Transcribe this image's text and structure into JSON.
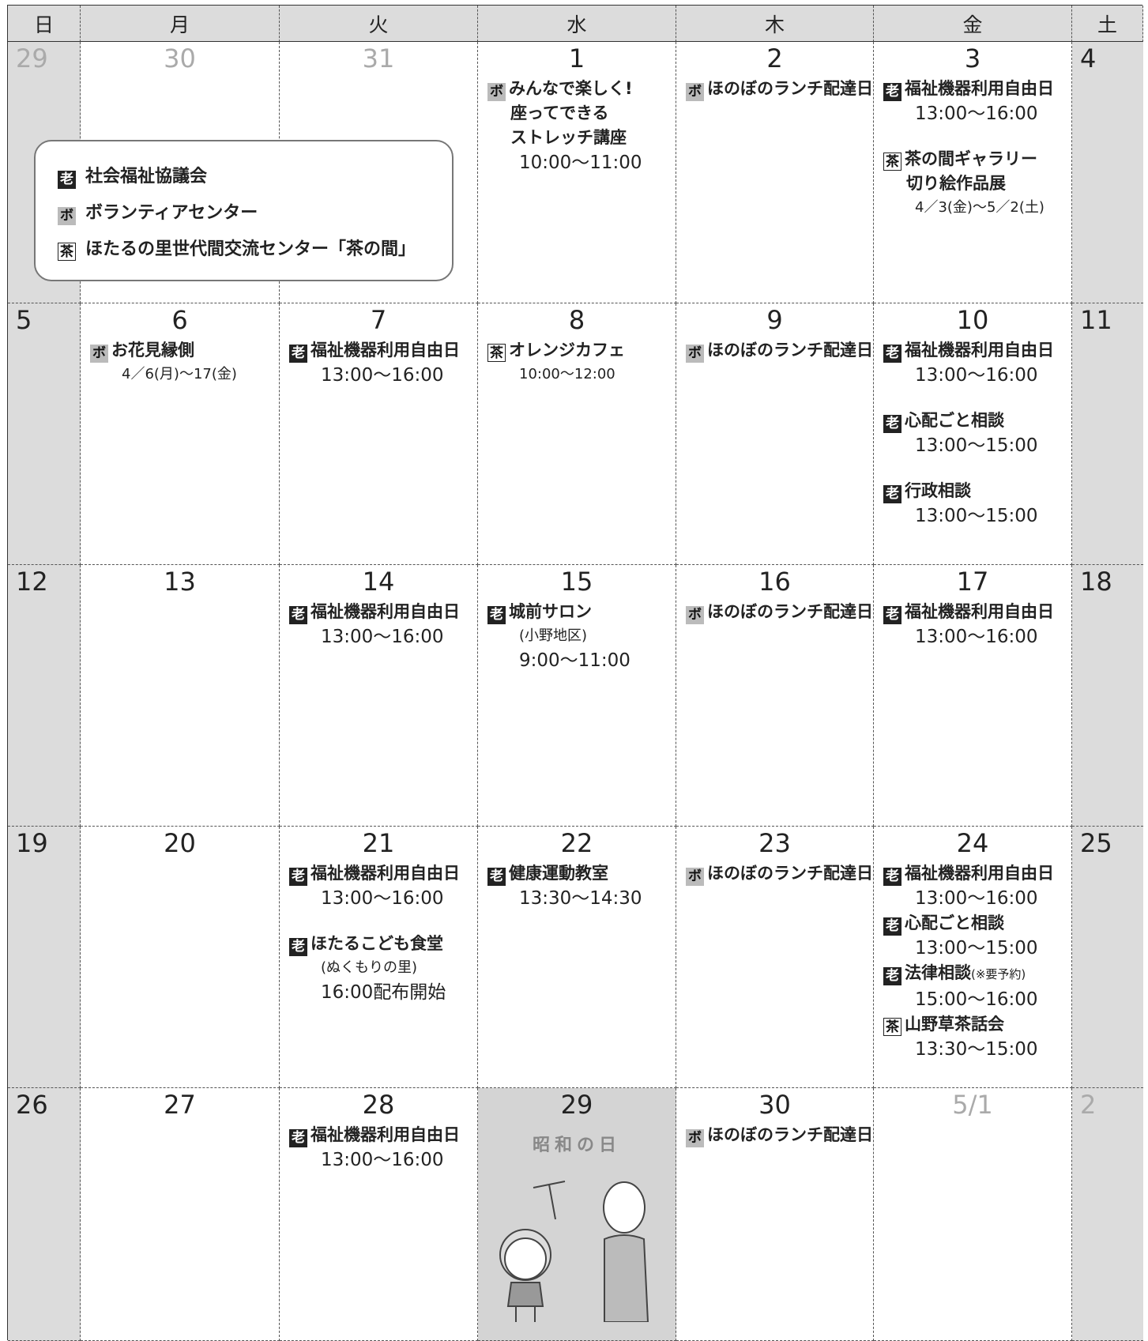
{
  "header": {
    "days": [
      "日",
      "月",
      "火",
      "水",
      "木",
      "金",
      "土"
    ]
  },
  "legend": {
    "items": [
      {
        "tag": "老",
        "label": "社会福祉協議会"
      },
      {
        "tag": "ボ",
        "label": "ボランティアセンター"
      },
      {
        "tag": "茶",
        "label": "ほたるの里世代間交流センター「茶の間」"
      }
    ]
  },
  "weeks": [
    {
      "days": [
        {
          "date": "29",
          "muted": true
        },
        {
          "date": "30",
          "muted": true
        },
        {
          "date": "31",
          "muted": true
        },
        {
          "date": "1",
          "events": [
            {
              "tag": "ボ",
              "title": [
                "みんなで楽しく!",
                "座ってできる",
                "ストレッチ講座"
              ],
              "lines": [
                "10:00〜11:00"
              ]
            }
          ]
        },
        {
          "date": "2",
          "events": [
            {
              "tag": "ボ",
              "title": [
                "ほのぼのランチ配達日"
              ]
            }
          ]
        },
        {
          "date": "3",
          "events": [
            {
              "tag": "老",
              "title": [
                "福祉機器利用自由日"
              ],
              "lines": [
                "13:00〜16:00"
              ]
            },
            {
              "tag": "茶",
              "title": [
                "茶の間ギャラリー",
                "切り絵作品展"
              ],
              "period": "4／3(金)〜5／2(土)"
            }
          ]
        },
        {
          "date": "4"
        }
      ]
    },
    {
      "days": [
        {
          "date": "5"
        },
        {
          "date": "6",
          "events": [
            {
              "tag": "ボ",
              "title": [
                "お花見縁側"
              ],
              "period": "4／6(月)〜17(金)"
            }
          ]
        },
        {
          "date": "7",
          "events": [
            {
              "tag": "老",
              "title": [
                "福祉機器利用自由日"
              ],
              "lines": [
                "13:00〜16:00"
              ]
            }
          ]
        },
        {
          "date": "8",
          "events": [
            {
              "tag": "茶",
              "title": [
                "オレンジカフェ"
              ],
              "period": "10:00〜12:00"
            }
          ]
        },
        {
          "date": "9",
          "events": [
            {
              "tag": "ボ",
              "title": [
                "ほのぼのランチ配達日"
              ]
            }
          ]
        },
        {
          "date": "10",
          "events": [
            {
              "tag": "老",
              "title": [
                "福祉機器利用自由日"
              ],
              "lines": [
                "13:00〜16:00"
              ]
            },
            {
              "tag": "老",
              "title": [
                "心配ごと相談"
              ],
              "lines": [
                "13:00〜15:00"
              ]
            },
            {
              "tag": "老",
              "title": [
                "行政相談"
              ],
              "lines": [
                "13:00〜15:00"
              ]
            }
          ]
        },
        {
          "date": "11"
        }
      ]
    },
    {
      "days": [
        {
          "date": "12"
        },
        {
          "date": "13"
        },
        {
          "date": "14",
          "events": [
            {
              "tag": "老",
              "title": [
                "福祉機器利用自由日"
              ],
              "lines": [
                "13:00〜16:00"
              ]
            }
          ]
        },
        {
          "date": "15",
          "events": [
            {
              "tag": "老",
              "title": [
                "城前サロン"
              ],
              "period": "(小野地区)",
              "lines": [
                "9:00〜11:00"
              ]
            }
          ]
        },
        {
          "date": "16",
          "events": [
            {
              "tag": "ボ",
              "title": [
                "ほのぼのランチ配達日"
              ]
            }
          ]
        },
        {
          "date": "17",
          "events": [
            {
              "tag": "老",
              "title": [
                "福祉機器利用自由日"
              ],
              "lines": [
                "13:00〜16:00"
              ]
            }
          ]
        },
        {
          "date": "18"
        }
      ]
    },
    {
      "days": [
        {
          "date": "19"
        },
        {
          "date": "20"
        },
        {
          "date": "21",
          "events": [
            {
              "tag": "老",
              "title": [
                "福祉機器利用自由日"
              ],
              "lines": [
                "13:00〜16:00"
              ]
            },
            {
              "tag": "老",
              "title": [
                "ほたるこども食堂"
              ],
              "period": "(ぬくもりの里)",
              "lines": [
                "16:00配布開始"
              ]
            }
          ]
        },
        {
          "date": "22",
          "events": [
            {
              "tag": "老",
              "title": [
                "健康運動教室"
              ],
              "lines": [
                "13:30〜14:30"
              ]
            }
          ]
        },
        {
          "date": "23",
          "events": [
            {
              "tag": "ボ",
              "title": [
                "ほのぼのランチ配達日"
              ]
            }
          ]
        },
        {
          "date": "24",
          "events": [
            {
              "tag": "老",
              "title": [
                "福祉機器利用自由日"
              ],
              "lines": [
                "13:00〜16:00"
              ]
            },
            {
              "tag": "老",
              "title": [
                "心配ごと相談"
              ],
              "lines": [
                "13:00〜15:00"
              ]
            },
            {
              "tag": "老",
              "title": [
                "法律相談"
              ],
              "note": "(※要予約)",
              "lines": [
                "15:00〜16:00"
              ]
            },
            {
              "tag": "茶",
              "title": [
                "山野草茶話会"
              ],
              "lines": [
                "13:30〜15:00"
              ]
            }
          ]
        },
        {
          "date": "25"
        }
      ]
    },
    {
      "days": [
        {
          "date": "26"
        },
        {
          "date": "27"
        },
        {
          "date": "28",
          "events": [
            {
              "tag": "老",
              "title": [
                "福祉機器利用自由日"
              ],
              "lines": [
                "13:00〜16:00"
              ]
            }
          ]
        },
        {
          "date": "29",
          "holiday": "昭和の日"
        },
        {
          "date": "30",
          "events": [
            {
              "tag": "ボ",
              "title": [
                "ほのぼのランチ配達日"
              ]
            }
          ]
        },
        {
          "date": "5/1",
          "muted": true
        },
        {
          "date": "2",
          "muted": true
        }
      ]
    }
  ]
}
